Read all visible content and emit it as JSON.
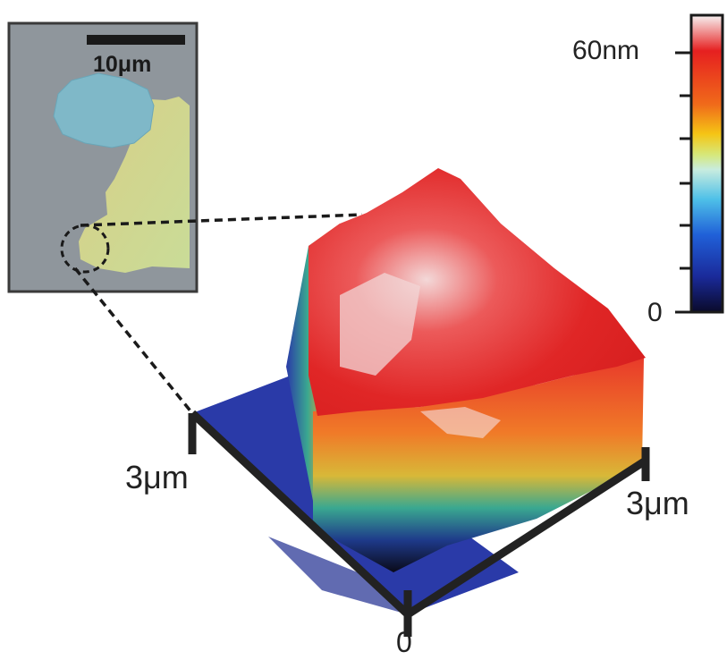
{
  "inset": {
    "scale_bar_label": "10μm"
  },
  "colorbar": {
    "max_label": "60nm",
    "min_label": "0",
    "gradient_stops": [
      "#f7f2f2",
      "#e62020",
      "#f06a1a",
      "#f5c515",
      "#d6e87a",
      "#c8ecdf",
      "#4ec0e8",
      "#2060d8",
      "#1a2a9a",
      "#0a0a2a"
    ]
  },
  "axes": {
    "left_label": "3μm",
    "right_label": "3μm",
    "origin_label": "0"
  },
  "colors": {
    "substrate": "#2a3aa8",
    "film_top": "#e32b2b",
    "film_highlight": "#f1d6d6",
    "axis_frame": "#222222",
    "inset_background": "#8f969c",
    "inset_blue_flake": "#7fb8c8",
    "inset_yellow_flake": "#c8d69a"
  }
}
